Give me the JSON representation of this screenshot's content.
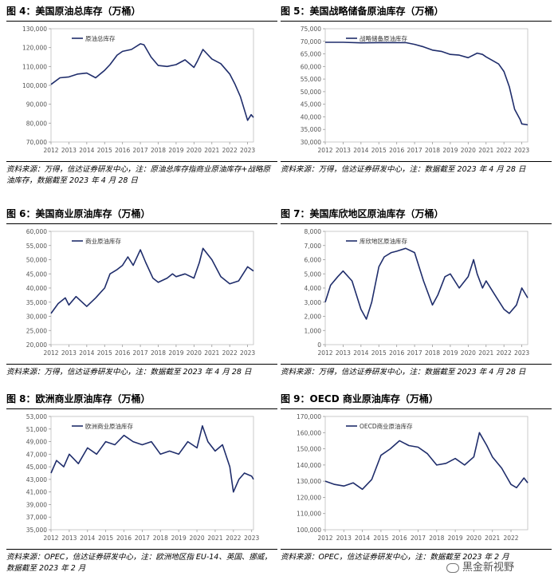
{
  "panels": [
    {
      "title": "图 4：美国原油总库存（万桶）",
      "source": "资料来源：万得，信达证券研发中心，注：原油总库存指商业原油库存+战略原油库存，数据截至 2023 年 4 月 28 日"
    },
    {
      "title": "图 5：美国战略储备原油库存（万桶）",
      "source": "资料来源：万得，信达证券研发中心，注：数据截至 2023 年 4 月 28 日"
    },
    {
      "title": "图 6：美国商业原油库存（万桶）",
      "source": "资料来源：万得，信达证券研发中心，注：数据截至 2023 年 4 月 28 日"
    },
    {
      "title": "图 7：美国库欣地区原油库存（万桶）",
      "source": "资料来源：万得，信达证券研发中心，注：数据截至 2023 年 4 月 28 日"
    },
    {
      "title": "图 8：欧洲商业原油库存（万桶）",
      "source": "资料来源：OPEC，信达证券研发中心，注：欧洲地区指 EU-14、英国、挪威，数据截至 2023 年 2 月"
    },
    {
      "title": "图 9：OECD 商业原油库存（万桶）",
      "source": "资料来源：OPEC，信达证券研发中心，注：数据截至 2023 年 2 月"
    }
  ],
  "watermark": "黑金新视野",
  "chart_data": [
    {
      "type": "line",
      "series": [
        {
          "name": "原油总库存",
          "color": "#1f2d6b",
          "x": [
            2012,
            2012.5,
            2013,
            2013.5,
            2014,
            2014.5,
            2015,
            2015.3,
            2015.7,
            2016,
            2016.5,
            2017,
            2017.2,
            2017.6,
            2018,
            2018.5,
            2019,
            2019.5,
            2020,
            2020.2,
            2020.5,
            2021,
            2021.5,
            2022,
            2022.3,
            2022.6,
            2023,
            2023.2,
            2023.33
          ],
          "y": [
            100500,
            104000,
            104500,
            106000,
            106500,
            104000,
            108000,
            111000,
            116000,
            118000,
            119000,
            122000,
            121500,
            115000,
            110500,
            110000,
            111000,
            113500,
            109500,
            113000,
            119000,
            114000,
            111500,
            106000,
            100500,
            94000,
            81500,
            84500,
            83000
          ]
        }
      ],
      "ylim": [
        70000,
        130000
      ],
      "yticks": [
        70000,
        80000,
        90000,
        100000,
        110000,
        120000,
        130000
      ],
      "ytick_labels": [
        "70,000",
        "80,000",
        "90,000",
        "100,000",
        "110,000",
        "120,000",
        "130,000"
      ],
      "xlim": [
        2012,
        2023.33
      ],
      "xticks": [
        2012,
        2013,
        2014,
        2015,
        2016,
        2017,
        2018,
        2019,
        2020,
        2021,
        2022,
        2023
      ],
      "xtick_labels": [
        "2012",
        "2013",
        "2014",
        "2015",
        "2016",
        "2017",
        "2018",
        "2019",
        "2020",
        "2021",
        "2022",
        "2023"
      ],
      "legend": "top-left"
    },
    {
      "type": "line",
      "series": [
        {
          "name": "战略储备原油库存",
          "color": "#1f2d6b",
          "x": [
            2012,
            2013,
            2014,
            2015,
            2016,
            2016.5,
            2017,
            2017.5,
            2018,
            2018.5,
            2019,
            2019.5,
            2020,
            2020.5,
            2020.8,
            2021,
            2021.3,
            2021.7,
            2022,
            2022.3,
            2022.6,
            2022.9,
            2023,
            2023.33
          ],
          "y": [
            69600,
            69600,
            69400,
            69500,
            69500,
            69500,
            68800,
            67800,
            66500,
            66000,
            64800,
            64500,
            63500,
            65300,
            64800,
            63800,
            62600,
            61000,
            58000,
            52000,
            43000,
            39000,
            37200,
            36800
          ]
        }
      ],
      "ylim": [
        30000,
        75000
      ],
      "yticks": [
        30000,
        35000,
        40000,
        45000,
        50000,
        55000,
        60000,
        65000,
        70000,
        75000
      ],
      "ytick_labels": [
        "30,000",
        "35,000",
        "40,000",
        "45,000",
        "50,000",
        "55,000",
        "60,000",
        "65,000",
        "70,000",
        "75,000"
      ],
      "xlim": [
        2012,
        2023.33
      ],
      "xticks": [
        2012,
        2013,
        2014,
        2015,
        2016,
        2017,
        2018,
        2019,
        2020,
        2021,
        2022,
        2023
      ],
      "xtick_labels": [
        "2012",
        "2013",
        "2014",
        "2015",
        "2016",
        "2017",
        "2018",
        "2019",
        "2020",
        "2021",
        "2022",
        "2023"
      ],
      "legend": "top-left"
    },
    {
      "type": "line",
      "series": [
        {
          "name": "商业原油库存",
          "color": "#1f2d6b",
          "x": [
            2012,
            2012.4,
            2012.8,
            2013,
            2013.4,
            2014,
            2014.5,
            2015,
            2015.3,
            2015.7,
            2016,
            2016.3,
            2016.6,
            2017,
            2017.3,
            2017.7,
            2018,
            2018.5,
            2018.8,
            2019,
            2019.5,
            2020,
            2020.3,
            2020.5,
            2021,
            2021.5,
            2022,
            2022.5,
            2023,
            2023.33
          ],
          "y": [
            31000,
            34500,
            36500,
            34000,
            37000,
            33500,
            36500,
            40000,
            45000,
            46500,
            48000,
            51000,
            48000,
            53500,
            49000,
            43500,
            42000,
            43500,
            45000,
            44000,
            45000,
            43500,
            49000,
            54000,
            50000,
            44000,
            41500,
            42500,
            47500,
            46000
          ]
        }
      ],
      "ylim": [
        20000,
        60000
      ],
      "yticks": [
        20000,
        25000,
        30000,
        35000,
        40000,
        45000,
        50000,
        55000,
        60000
      ],
      "ytick_labels": [
        "20,000",
        "25,000",
        "30,000",
        "35,000",
        "40,000",
        "45,000",
        "50,000",
        "55,000",
        "60,000"
      ],
      "xlim": [
        2012,
        2023.33
      ],
      "xticks": [
        2012,
        2013,
        2014,
        2015,
        2016,
        2017,
        2018,
        2019,
        2020,
        2021,
        2022,
        2023
      ],
      "xtick_labels": [
        "2012",
        "2013",
        "2014",
        "2015",
        "2016",
        "2017",
        "2018",
        "2019",
        "2020",
        "2021",
        "2022",
        "2023"
      ],
      "legend": "top-left"
    },
    {
      "type": "line",
      "series": [
        {
          "name": "库欣地区原油库存",
          "color": "#1f2d6b",
          "x": [
            2012,
            2012.3,
            2012.7,
            2013,
            2013.5,
            2014,
            2014.3,
            2014.6,
            2015,
            2015.3,
            2015.7,
            2016,
            2016.5,
            2017,
            2017.5,
            2018,
            2018.3,
            2018.7,
            2019,
            2019.5,
            2020,
            2020.3,
            2020.5,
            2020.8,
            2021,
            2021.5,
            2022,
            2022.3,
            2022.7,
            2023,
            2023.33
          ],
          "y": [
            3000,
            4200,
            4800,
            5200,
            4500,
            2500,
            1800,
            3000,
            5500,
            6200,
            6500,
            6600,
            6800,
            6500,
            4500,
            2800,
            3500,
            4800,
            5000,
            4000,
            4800,
            6000,
            5000,
            4000,
            4500,
            3500,
            2500,
            2200,
            2800,
            4000,
            3300
          ]
        }
      ],
      "ylim": [
        0,
        8000
      ],
      "yticks": [
        0,
        1000,
        2000,
        3000,
        4000,
        5000,
        6000,
        7000,
        8000
      ],
      "ytick_labels": [
        "0",
        "1,000",
        "2,000",
        "3,000",
        "4,000",
        "5,000",
        "6,000",
        "7,000",
        "8,000"
      ],
      "xlim": [
        2012,
        2023.33
      ],
      "xticks": [
        2012,
        2013,
        2014,
        2015,
        2016,
        2017,
        2018,
        2019,
        2020,
        2021,
        2022,
        2023
      ],
      "xtick_labels": [
        "2012",
        "2013",
        "2014",
        "2015",
        "2016",
        "2017",
        "2018",
        "2019",
        "2020",
        "2021",
        "2022",
        "2023"
      ],
      "legend": "top-left"
    },
    {
      "type": "line",
      "series": [
        {
          "name": "欧洲商业原油库存",
          "color": "#1f2d6b",
          "x": [
            2012,
            2012.3,
            2012.7,
            2013,
            2013.5,
            2014,
            2014.5,
            2015,
            2015.5,
            2016,
            2016.5,
            2017,
            2017.5,
            2018,
            2018.5,
            2019,
            2019.5,
            2020,
            2020.3,
            2020.6,
            2021,
            2021.4,
            2021.8,
            2022,
            2022.3,
            2022.6,
            2023,
            2023.1
          ],
          "y": [
            44000,
            46000,
            45000,
            47000,
            45500,
            48000,
            47000,
            49000,
            48500,
            50000,
            49000,
            48500,
            49000,
            47000,
            47500,
            47000,
            49000,
            48000,
            51500,
            49000,
            47500,
            48500,
            45000,
            41000,
            43000,
            44000,
            43500,
            43000
          ]
        }
      ],
      "ylim": [
        35000,
        53000
      ],
      "yticks": [
        35000,
        37000,
        39000,
        41000,
        43000,
        45000,
        47000,
        49000,
        51000,
        53000
      ],
      "ytick_labels": [
        "35,000",
        "37,000",
        "39,000",
        "41,000",
        "43,000",
        "45,000",
        "47,000",
        "49,000",
        "51,000",
        "53,000"
      ],
      "xlim": [
        2012,
        2023.1
      ],
      "xticks": [
        2012,
        2013,
        2014,
        2015,
        2016,
        2017,
        2018,
        2019,
        2020,
        2021,
        2022,
        2023
      ],
      "xtick_labels": [
        "2012",
        "2013",
        "2014",
        "2015",
        "2016",
        "2017",
        "2018",
        "2019",
        "2020",
        "2021",
        "2022",
        "2023"
      ],
      "legend": "top-left"
    },
    {
      "type": "line",
      "series": [
        {
          "name": "OECD商业原油库存",
          "color": "#1f2d6b",
          "x": [
            2012,
            2012.5,
            2013,
            2013.5,
            2014,
            2014.5,
            2015,
            2015.5,
            2016,
            2016.5,
            2017,
            2017.5,
            2018,
            2018.5,
            2019,
            2019.5,
            2020,
            2020.3,
            2020.7,
            2021,
            2021.5,
            2022,
            2022.3,
            2022.7,
            2022.9
          ],
          "y": [
            130000,
            128000,
            127000,
            129000,
            125000,
            131000,
            146000,
            150000,
            155000,
            152000,
            151000,
            147000,
            140000,
            141000,
            144000,
            140000,
            145000,
            160000,
            152000,
            145000,
            138000,
            128000,
            126000,
            132000,
            129000
          ]
        }
      ],
      "ylim": [
        100000,
        170000
      ],
      "yticks": [
        100000,
        110000,
        120000,
        130000,
        140000,
        150000,
        160000,
        170000
      ],
      "ytick_labels": [
        "100,000",
        "110,000",
        "120,000",
        "130,000",
        "140,000",
        "150,000",
        "160,000",
        "170,000"
      ],
      "xlim": [
        2012,
        2022.9
      ],
      "xticks": [
        2012,
        2013,
        2014,
        2015,
        2016,
        2017,
        2018,
        2019,
        2020,
        2021,
        2022
      ],
      "xtick_labels": [
        "2012",
        "2013",
        "2014",
        "2015",
        "2016",
        "2017",
        "2018",
        "2019",
        "2020",
        "2021",
        "2022"
      ],
      "legend": "top-left"
    }
  ]
}
